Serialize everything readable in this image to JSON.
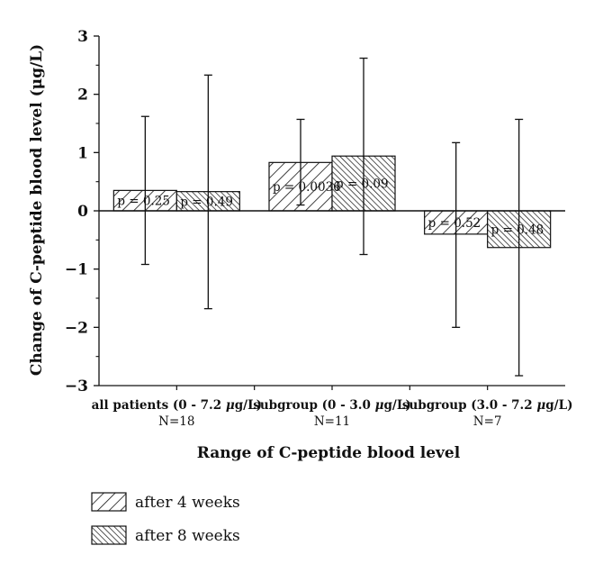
{
  "chart_data": {
    "type": "bar",
    "xlabel": "Range of C-peptide blood level",
    "ylabel": "Change of C-peptide blood level (μg/L)",
    "ylim": [
      -3,
      3
    ],
    "yticks": [
      3,
      2,
      1,
      0,
      -1,
      -2,
      -3
    ],
    "y_tick_labels": [
      "3",
      "2",
      "1",
      "0",
      "−1",
      "−2",
      "−3"
    ],
    "categories": [
      {
        "name_prefix": "all patients (0 - 7.2 ",
        "name_unit": "μg/L)",
        "n": "N=18"
      },
      {
        "name_prefix": "subgroup (0 - 3.0 ",
        "name_unit": "μg/L)",
        "n": "N=11"
      },
      {
        "name_prefix": "subgroup (3.0 - 7.2 ",
        "name_unit": "μg/L)",
        "n": "N=7"
      }
    ],
    "series": [
      {
        "name": "after 4 weeks",
        "pattern": "diagonal-hatch-sparse",
        "values": [
          0.35,
          0.83,
          -0.4
        ],
        "error_upper": [
          1.62,
          1.57,
          1.17
        ],
        "error_lower": [
          -0.92,
          0.1,
          -2.0
        ],
        "labels": [
          "p = 0.25",
          "p = 0.0036",
          "p = 0.52"
        ]
      },
      {
        "name": "after 8 weeks",
        "pattern": "diagonal-hatch-dense",
        "values": [
          0.33,
          0.94,
          -0.63
        ],
        "error_upper": [
          2.33,
          2.62,
          1.57
        ],
        "error_lower": [
          -1.68,
          -0.75,
          -2.83
        ],
        "labels": [
          "p = 0.49",
          "p = 0.09",
          "p = 0.48"
        ]
      }
    ],
    "legend_placement": "bottom-left",
    "grid": false,
    "colors": {
      "stroke": "#111111",
      "background": "#ffffff"
    }
  }
}
